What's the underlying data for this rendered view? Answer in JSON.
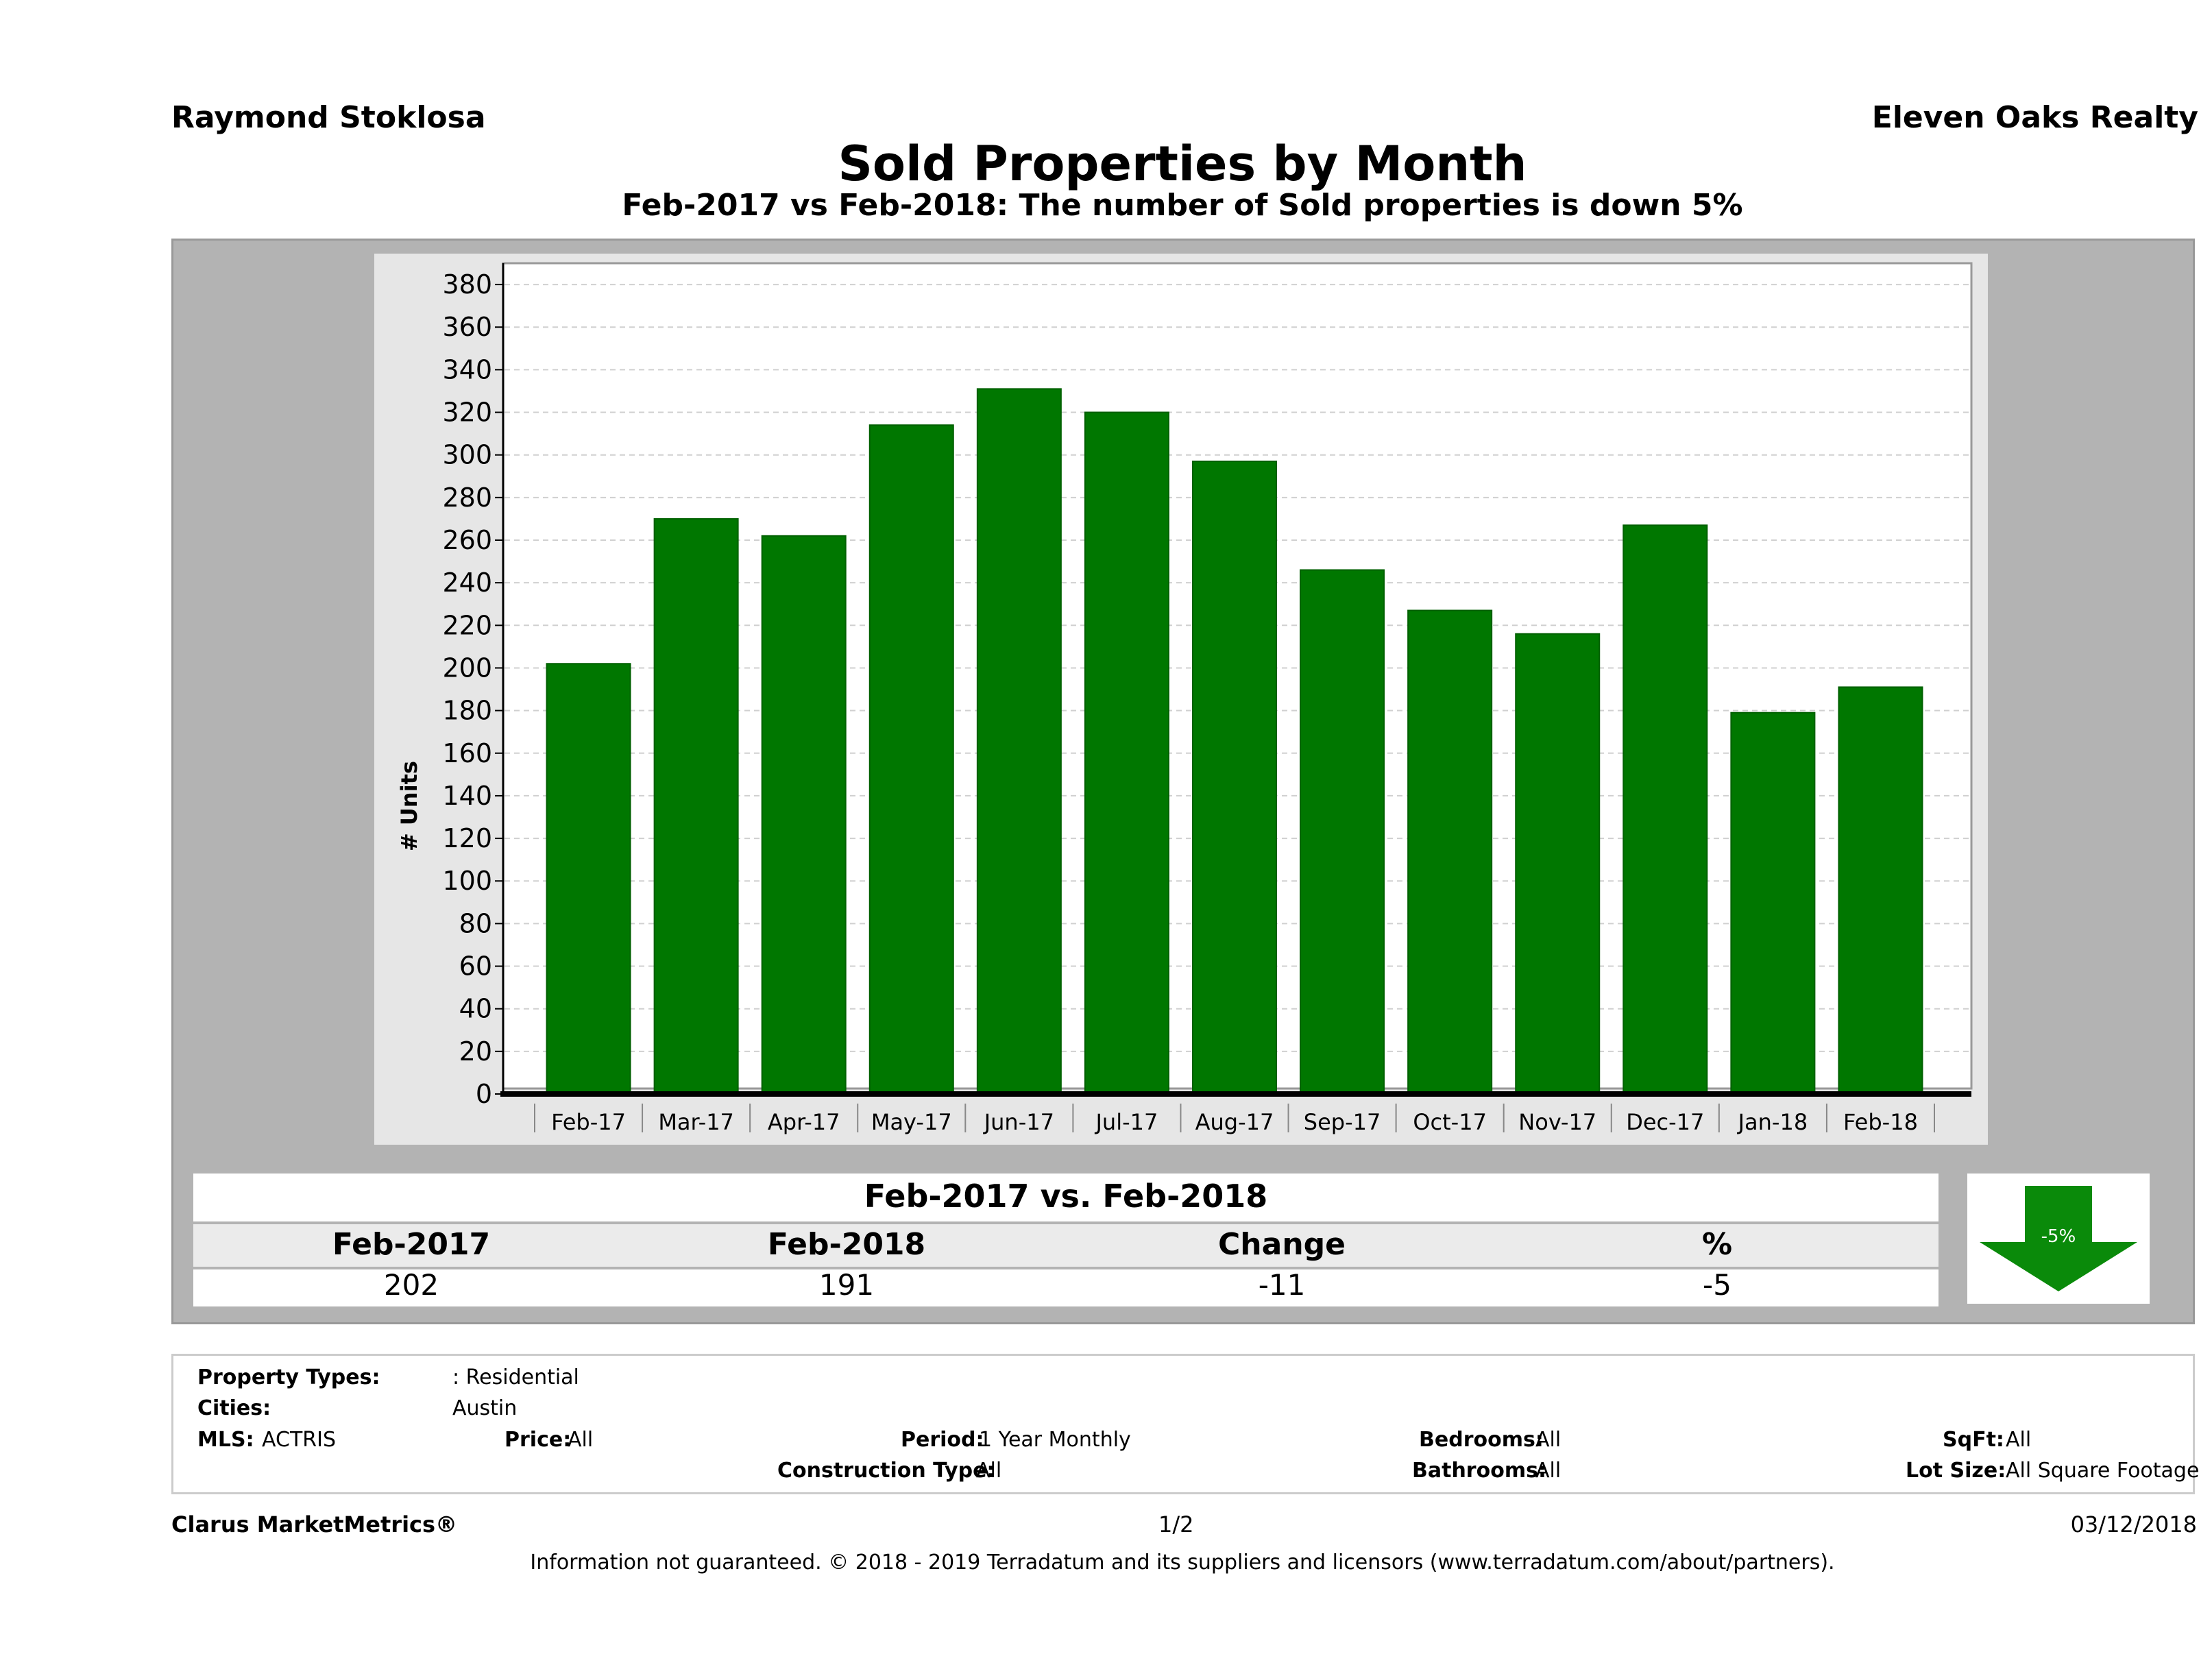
{
  "header": {
    "agent_name": "Raymond Stoklosa",
    "brokerage": "Eleven Oaks Realty",
    "title": "Sold Properties by Month",
    "subtitle": "Feb-2017 vs Feb-2018: The number of Sold  properties is down 5%"
  },
  "chart_data": {
    "type": "bar",
    "categories": [
      "Feb-17",
      "Mar-17",
      "Apr-17",
      "May-17",
      "Jun-17",
      "Jul-17",
      "Aug-17",
      "Sep-17",
      "Oct-17",
      "Nov-17",
      "Dec-17",
      "Jan-18",
      "Feb-18"
    ],
    "values": [
      202,
      270,
      262,
      314,
      331,
      320,
      297,
      246,
      227,
      216,
      267,
      179,
      191
    ],
    "ylabel": "# Units",
    "ylim": [
      0,
      390
    ],
    "yticks": [
      0,
      20,
      40,
      60,
      80,
      100,
      120,
      140,
      160,
      180,
      200,
      220,
      240,
      260,
      280,
      300,
      320,
      340,
      360,
      380
    ],
    "grid": true,
    "bar_color": "#007700"
  },
  "summary": {
    "title": "Feb-2017 vs. Feb-2018",
    "headers": [
      "Feb-2017",
      "Feb-2018",
      "Change",
      "%"
    ],
    "values": [
      "202",
      "191",
      "-11",
      "-5"
    ],
    "badge": "-5%",
    "arrow_color": "#0a8a0a",
    "arrow_icon": "down-arrow-icon"
  },
  "filters": {
    "property_types_label": "Property Types:",
    "property_types_value": ": Residential",
    "cities_label": "Cities:",
    "cities_value": "Austin",
    "mls_label": "MLS:",
    "mls_value": "ACTRIS",
    "price_label": "Price:",
    "price_value": "All",
    "period_label": "Period:",
    "period_value": "1 Year Monthly",
    "construction_label": "Construction Type:",
    "construction_value": "All",
    "bedrooms_label": "Bedrooms:",
    "bedrooms_value": "All",
    "bathrooms_label": "Bathrooms:",
    "bathrooms_value": "All",
    "sqft_label": "SqFt:",
    "sqft_value": "All",
    "lot_size_label": "Lot Size:",
    "lot_size_value": "All Square Footage"
  },
  "footer": {
    "brand": "Clarus MarketMetrics®",
    "page": "1/2",
    "date": "03/12/2018",
    "disclaimer": "Information not guaranteed. © 2018 - 2019 Terradatum and its suppliers and licensors (www.terradatum.com/about/partners)."
  }
}
